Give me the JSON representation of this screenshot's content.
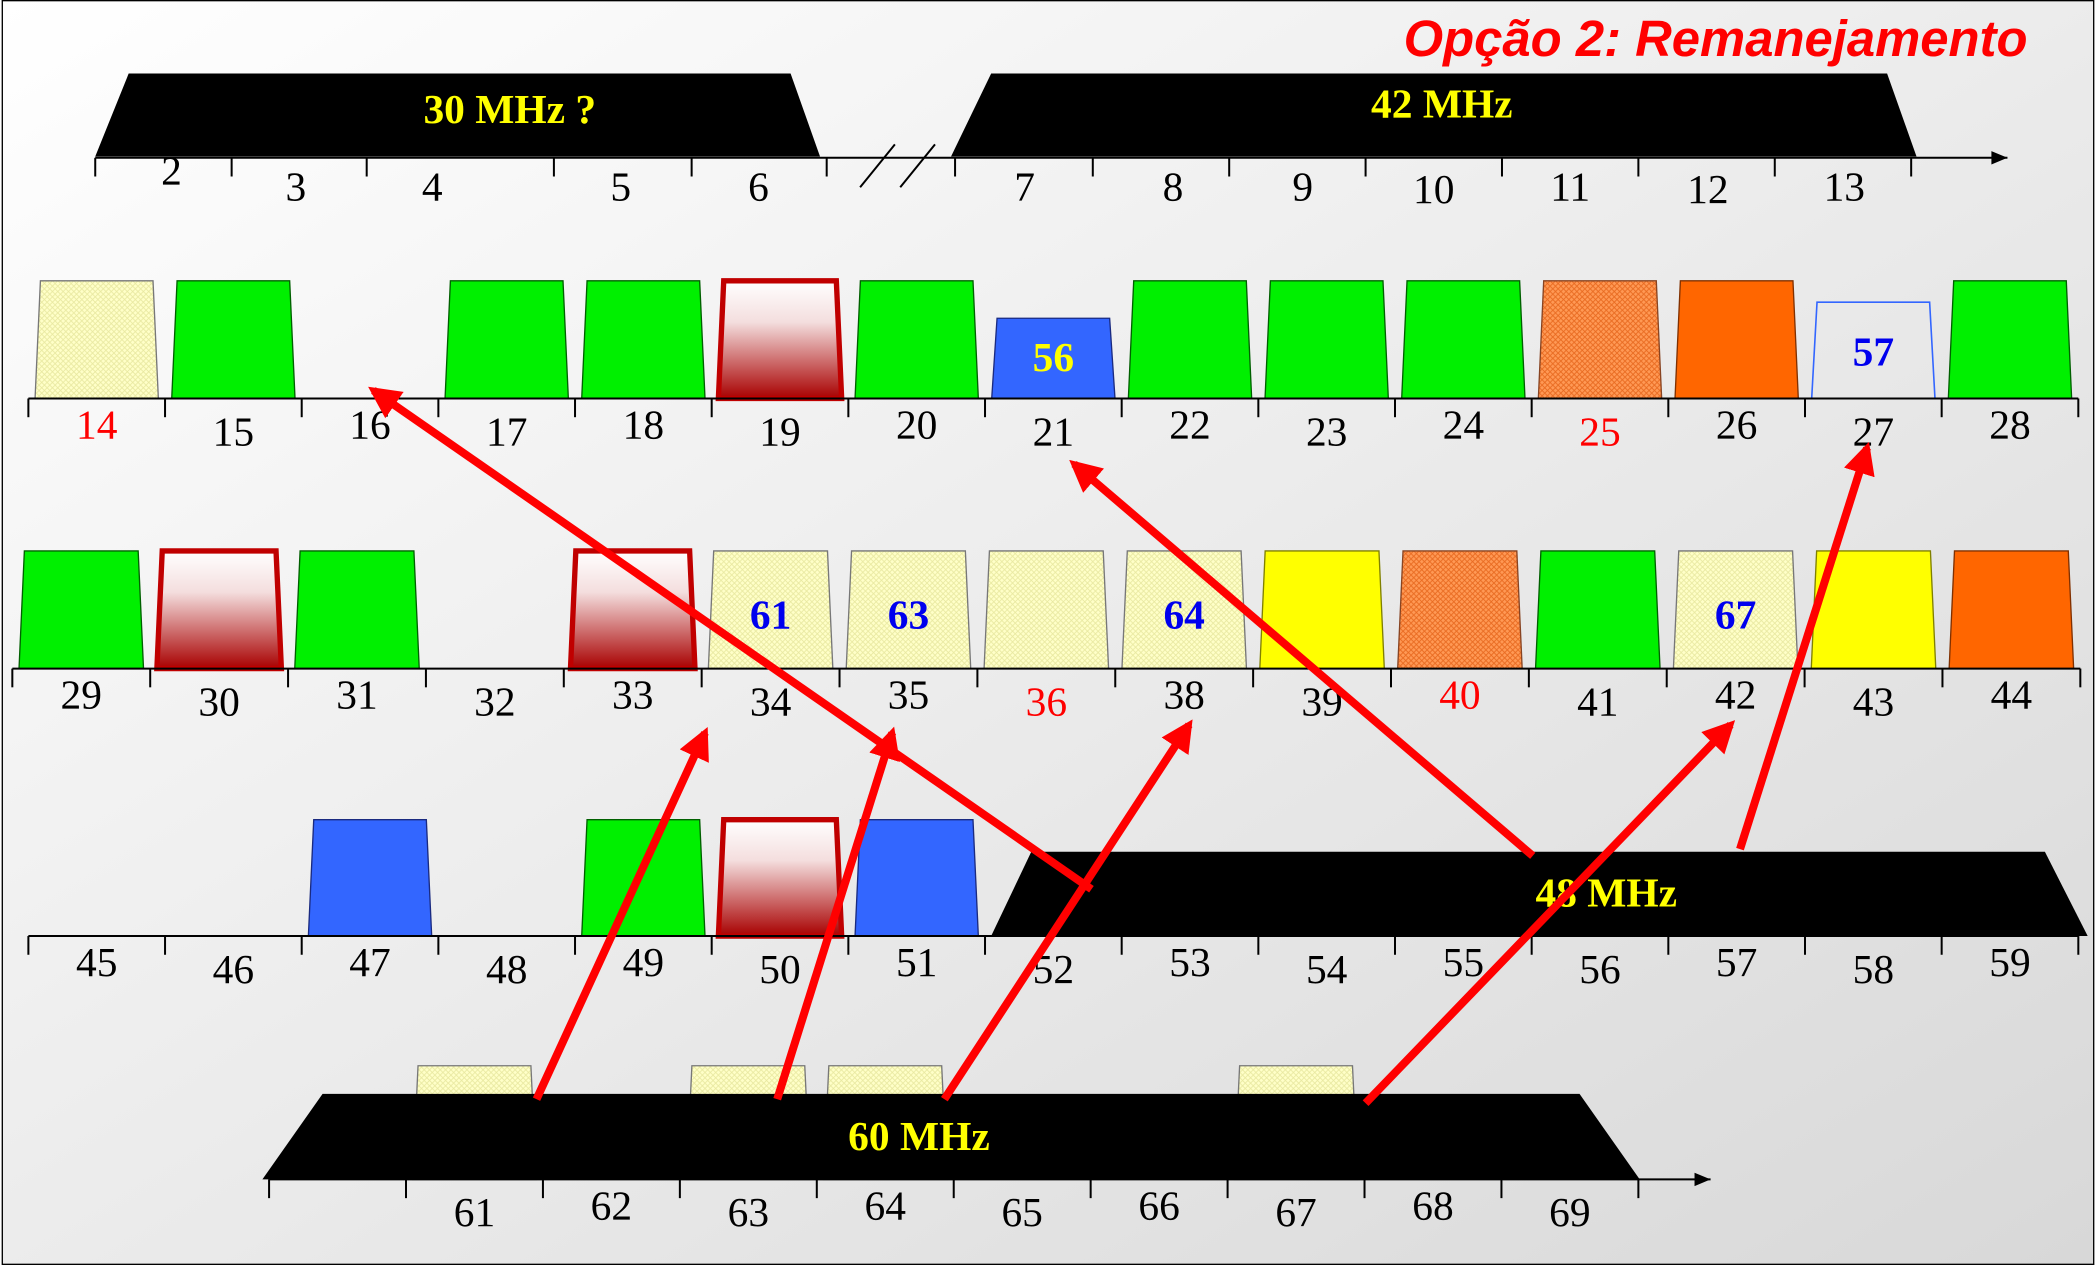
{
  "title": "Opção 2: Remanejamento",
  "bands": [
    {
      "label": "30 MHz ?"
    },
    {
      "label": "42 MHz"
    },
    {
      "label": "48 MHz"
    },
    {
      "label": "60 MHz"
    }
  ],
  "rows": [
    {
      "channels": [
        2,
        3,
        4,
        5,
        6,
        7,
        8,
        9,
        10,
        11,
        12,
        13
      ]
    },
    {
      "channels": [
        14,
        15,
        16,
        17,
        18,
        19,
        20,
        21,
        22,
        23,
        24,
        25,
        26,
        27,
        28
      ]
    },
    {
      "channels": [
        29,
        30,
        31,
        32,
        33,
        34,
        35,
        36,
        38,
        39,
        40,
        41,
        42,
        43,
        44
      ]
    },
    {
      "channels": [
        45,
        46,
        47,
        48,
        49,
        50,
        51,
        52,
        53,
        54,
        55,
        56,
        57,
        58,
        59
      ]
    },
    {
      "channels": [
        61,
        62,
        63,
        64,
        65,
        66,
        67,
        68,
        69
      ]
    }
  ],
  "slot_labels": [
    "56",
    "57",
    "61",
    "63",
    "64",
    "67"
  ]
}
